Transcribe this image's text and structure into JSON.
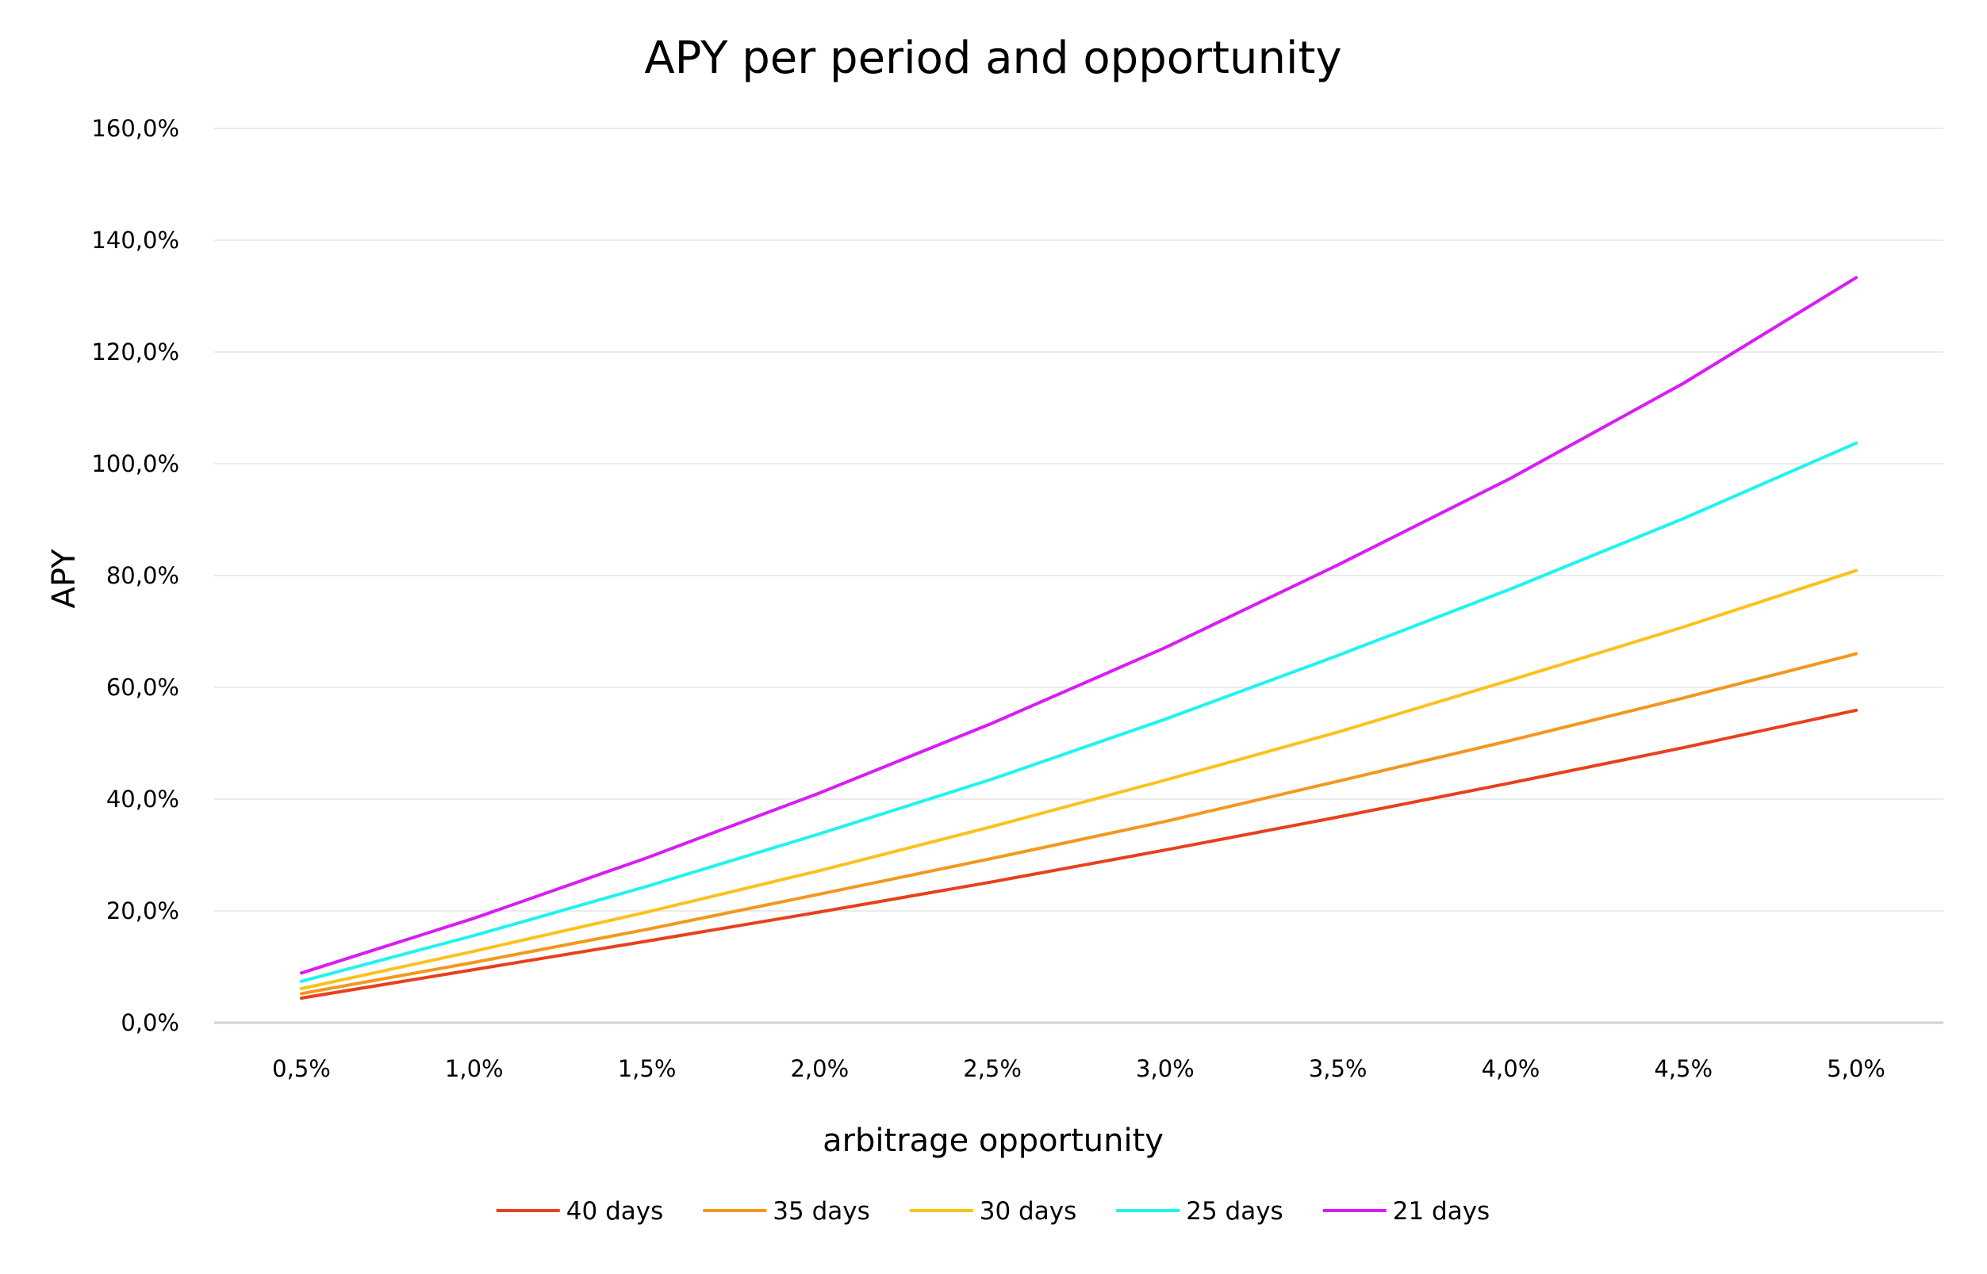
{
  "chart_data": {
    "type": "line",
    "title": "APY per period and opportunity",
    "xlabel": "arbitrage opportunity",
    "ylabel": "APY",
    "categories": [
      "0,5%",
      "1,0%",
      "1,5%",
      "2,0%",
      "2,5%",
      "3,0%",
      "3,5%",
      "4,0%",
      "4,5%",
      "5,0%"
    ],
    "y_ticks": [
      "0,0%",
      "20,0%",
      "40,0%",
      "60,0%",
      "80,0%",
      "100,0%",
      "120,0%",
      "140,0%",
      "160,0%"
    ],
    "ylim": [
      0,
      160
    ],
    "grid": true,
    "legend_position": "bottom",
    "series": [
      {
        "name": "40 days",
        "color": "#e8401c",
        "values": [
          4.4,
          9.5,
          14.6,
          19.8,
          25.2,
          30.9,
          36.8,
          42.9,
          49.2,
          55.9
        ]
      },
      {
        "name": "35 days",
        "color": "#f4971e",
        "values": [
          5.2,
          10.8,
          16.7,
          23.0,
          29.4,
          36.0,
          43.2,
          50.5,
          58.1,
          66.0
        ]
      },
      {
        "name": "30 days",
        "color": "#fbc21d",
        "values": [
          6.1,
          12.8,
          19.8,
          27.2,
          35.1,
          43.4,
          52.0,
          61.3,
          70.8,
          80.9
        ]
      },
      {
        "name": "25 days",
        "color": "#20f3f0",
        "values": [
          7.4,
          15.6,
          24.4,
          33.8,
          43.6,
          54.3,
          65.7,
          77.6,
          90.2,
          103.7
        ]
      },
      {
        "name": "21 days",
        "color": "#d81cf7",
        "values": [
          8.9,
          18.7,
          29.5,
          41.1,
          53.6,
          67.1,
          81.9,
          97.4,
          114.4,
          133.3
        ]
      }
    ]
  }
}
